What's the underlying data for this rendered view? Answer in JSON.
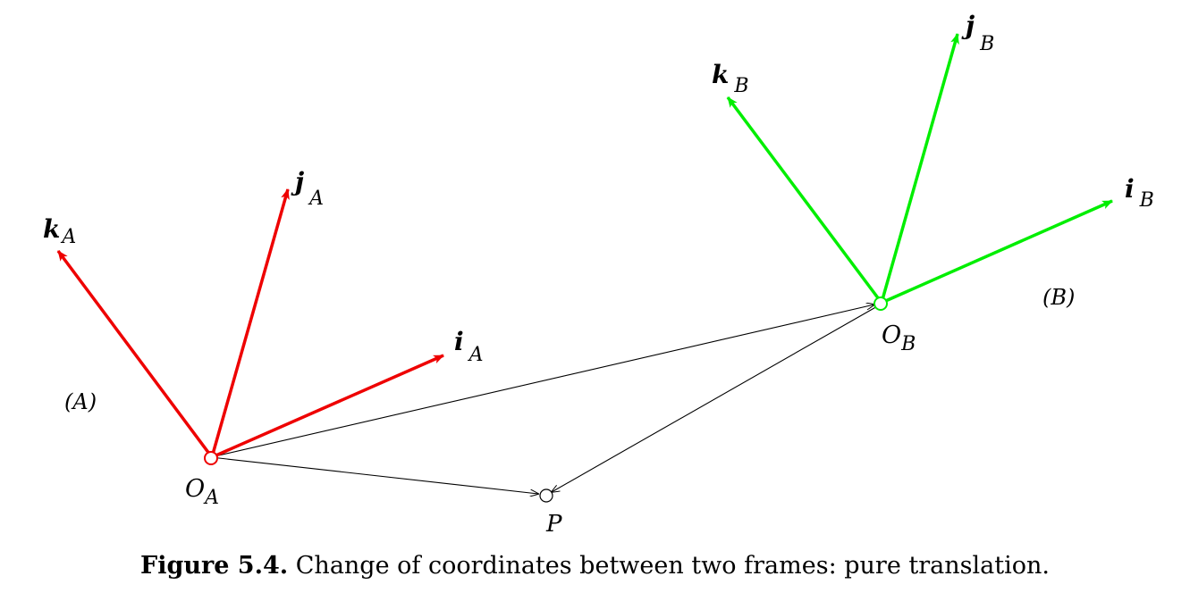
{
  "frame_a": {
    "origin_label": "O",
    "origin_sub": "A",
    "name": "(A)",
    "i_label": "i",
    "i_sub": "A",
    "j_label": "j",
    "j_sub": "A",
    "k_label": "k",
    "k_sub": "A",
    "color": "#ee0000"
  },
  "frame_b": {
    "origin_label": "O",
    "origin_sub": "B",
    "name": "(B)",
    "i_label": "i",
    "i_sub": "B",
    "j_label": "j",
    "j_sub": "B",
    "k_label": "k",
    "k_sub": "B",
    "color": "#00ee00"
  },
  "point": {
    "label": "P"
  },
  "caption": {
    "number": "Figure 5.4.",
    "text": "Change of coordinates between two frames: pure translation."
  }
}
